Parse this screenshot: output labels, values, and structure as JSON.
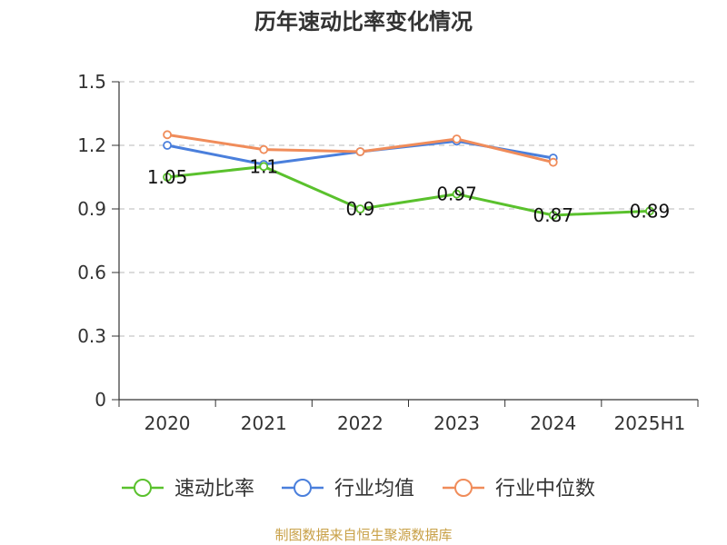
{
  "chart_data": {
    "type": "line",
    "title": "历年速动比率变化情况",
    "categories": [
      "2020",
      "2021",
      "2022",
      "2023",
      "2024",
      "2025H1"
    ],
    "ylim": [
      0,
      1.5
    ],
    "yticks": [
      "0",
      "0.3",
      "0.6",
      "0.9",
      "1.2",
      "1.5"
    ],
    "grid": true,
    "legend_position": "bottom",
    "series": [
      {
        "name": "速动比率",
        "color": "#5ac12d",
        "values": [
          1.05,
          1.1,
          0.9,
          0.97,
          0.87,
          0.89
        ],
        "labels": [
          "1.05",
          "1.1",
          "0.9",
          "0.97",
          "0.87",
          "0.89"
        ]
      },
      {
        "name": "行业均值",
        "color": "#4a7fdc",
        "values": [
          1.2,
          1.11,
          1.17,
          1.22,
          1.14,
          null
        ]
      },
      {
        "name": "行业中位数",
        "color": "#f08c5a",
        "values": [
          1.25,
          1.18,
          1.17,
          1.23,
          1.12,
          null
        ]
      }
    ]
  },
  "source": "制图数据来自恒生聚源数据库"
}
